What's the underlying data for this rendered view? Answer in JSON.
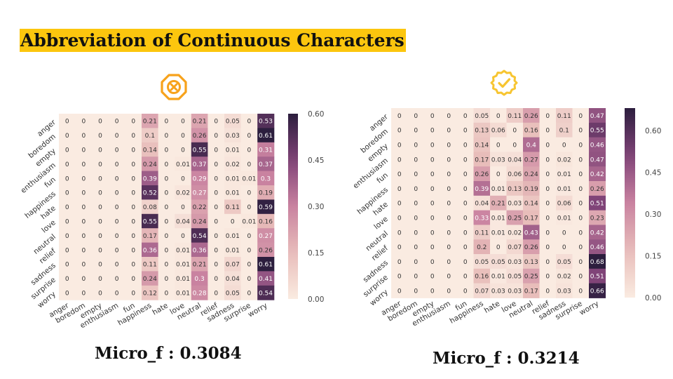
{
  "title": "Abbreviation of Continuous Characters",
  "panels": [
    {
      "status": "rejected",
      "status_icon": "x-octagon-icon",
      "icon_color": "#f7a21b",
      "metric_label": "Micro_f : 0.3084"
    },
    {
      "status": "approved",
      "status_icon": "check-circle-icon",
      "icon_color": "#f7c531",
      "metric_label": "Micro_f : 0.3214"
    }
  ],
  "chart_data": [
    {
      "type": "heatmap",
      "labels": [
        "anger",
        "boredom",
        "empty",
        "enthusiasm",
        "fun",
        "happiness",
        "hate",
        "love",
        "neutral",
        "relief",
        "sadness",
        "surprise",
        "worry"
      ],
      "colorbar_ticks": [
        "0.00",
        "0.15",
        "0.30",
        "0.45",
        "0.60"
      ],
      "vmin": 0,
      "vmax": 0.6,
      "values": [
        [
          0,
          0,
          0,
          0,
          0,
          0.21,
          0,
          0,
          0.21,
          0,
          0.05,
          0,
          0.53
        ],
        [
          0,
          0,
          0,
          0,
          0,
          0.1,
          0,
          0,
          0.26,
          0,
          0.03,
          0,
          0.61
        ],
        [
          0,
          0,
          0,
          0,
          0,
          0.14,
          0,
          0,
          0.55,
          0,
          0.01,
          0,
          0.31
        ],
        [
          0,
          0,
          0,
          0,
          0,
          0.24,
          0,
          0.01,
          0.37,
          0,
          0.02,
          0,
          0.37
        ],
        [
          0,
          0,
          0,
          0,
          0,
          0.39,
          0,
          0,
          0.29,
          0,
          0.01,
          0.01,
          0.3
        ],
        [
          0,
          0,
          0,
          0,
          0,
          0.52,
          0,
          0.02,
          0.27,
          0,
          0.01,
          0,
          0.19
        ],
        [
          0,
          0,
          0,
          0,
          0,
          0.08,
          0,
          0,
          0.22,
          0,
          0.11,
          0,
          0.59
        ],
        [
          0,
          0,
          0,
          0,
          0,
          0.55,
          0,
          0.04,
          0.24,
          0,
          0,
          0.01,
          0.16
        ],
        [
          0,
          0,
          0,
          0,
          0,
          0.17,
          0,
          0,
          0.54,
          0,
          0.01,
          0,
          0.27
        ],
        [
          0,
          0,
          0,
          0,
          0,
          0.36,
          0,
          0.01,
          0.36,
          0,
          0.01,
          0,
          0.26
        ],
        [
          0,
          0,
          0,
          0,
          0,
          0.11,
          0,
          0.01,
          0.21,
          0,
          0.07,
          0,
          0.61
        ],
        [
          0,
          0,
          0,
          0,
          0,
          0.24,
          0,
          0.01,
          0.3,
          0,
          0.04,
          0,
          0.41
        ],
        [
          0,
          0,
          0,
          0,
          0,
          0.12,
          0,
          0.01,
          0.28,
          0,
          0.05,
          0,
          0.54
        ]
      ]
    },
    {
      "type": "heatmap",
      "labels": [
        "anger",
        "boredom",
        "empty",
        "enthusiasm",
        "fun",
        "happiness",
        "hate",
        "love",
        "neutral",
        "relief",
        "sadness",
        "surprise",
        "worry"
      ],
      "colorbar_ticks": [
        "0.00",
        "0.15",
        "0.30",
        "0.45",
        "0.60"
      ],
      "vmin": 0,
      "vmax": 0.68,
      "values": [
        [
          0,
          0,
          0,
          0,
          0,
          0.05,
          0,
          0.11,
          0.26,
          0,
          0.11,
          0,
          0.47
        ],
        [
          0,
          0,
          0,
          0,
          0,
          0.13,
          0.06,
          0,
          0.16,
          0,
          0.1,
          0,
          0.55
        ],
        [
          0,
          0,
          0,
          0,
          0,
          0.14,
          0,
          0,
          0.4,
          0,
          0,
          0,
          0.46
        ],
        [
          0,
          0,
          0,
          0,
          0,
          0.17,
          0.03,
          0.04,
          0.27,
          0,
          0.02,
          0,
          0.47
        ],
        [
          0,
          0,
          0,
          0,
          0,
          0.26,
          0,
          0.06,
          0.24,
          0,
          0.01,
          0,
          0.42
        ],
        [
          0,
          0,
          0,
          0,
          0,
          0.39,
          0.01,
          0.13,
          0.19,
          0,
          0.01,
          0,
          0.26
        ],
        [
          0,
          0,
          0,
          0,
          0,
          0.04,
          0.21,
          0.03,
          0.14,
          0,
          0.06,
          0,
          0.51
        ],
        [
          0,
          0,
          0,
          0,
          0,
          0.33,
          0.01,
          0.25,
          0.17,
          0,
          0.01,
          0,
          0.23
        ],
        [
          0,
          0,
          0,
          0,
          0,
          0.11,
          0.01,
          0.02,
          0.43,
          0,
          0,
          0,
          0.42
        ],
        [
          0,
          0,
          0,
          0,
          0,
          0.2,
          0,
          0.07,
          0.26,
          0,
          0,
          0,
          0.46
        ],
        [
          0,
          0,
          0,
          0,
          0,
          0.05,
          0.05,
          0.03,
          0.13,
          0,
          0.05,
          0,
          0.68
        ],
        [
          0,
          0,
          0,
          0,
          0,
          0.16,
          0.01,
          0.05,
          0.25,
          0,
          0.02,
          0,
          0.51
        ],
        [
          0,
          0,
          0,
          0,
          0,
          0.07,
          0.03,
          0.03,
          0.17,
          0,
          0.03,
          0,
          0.66
        ]
      ]
    }
  ]
}
